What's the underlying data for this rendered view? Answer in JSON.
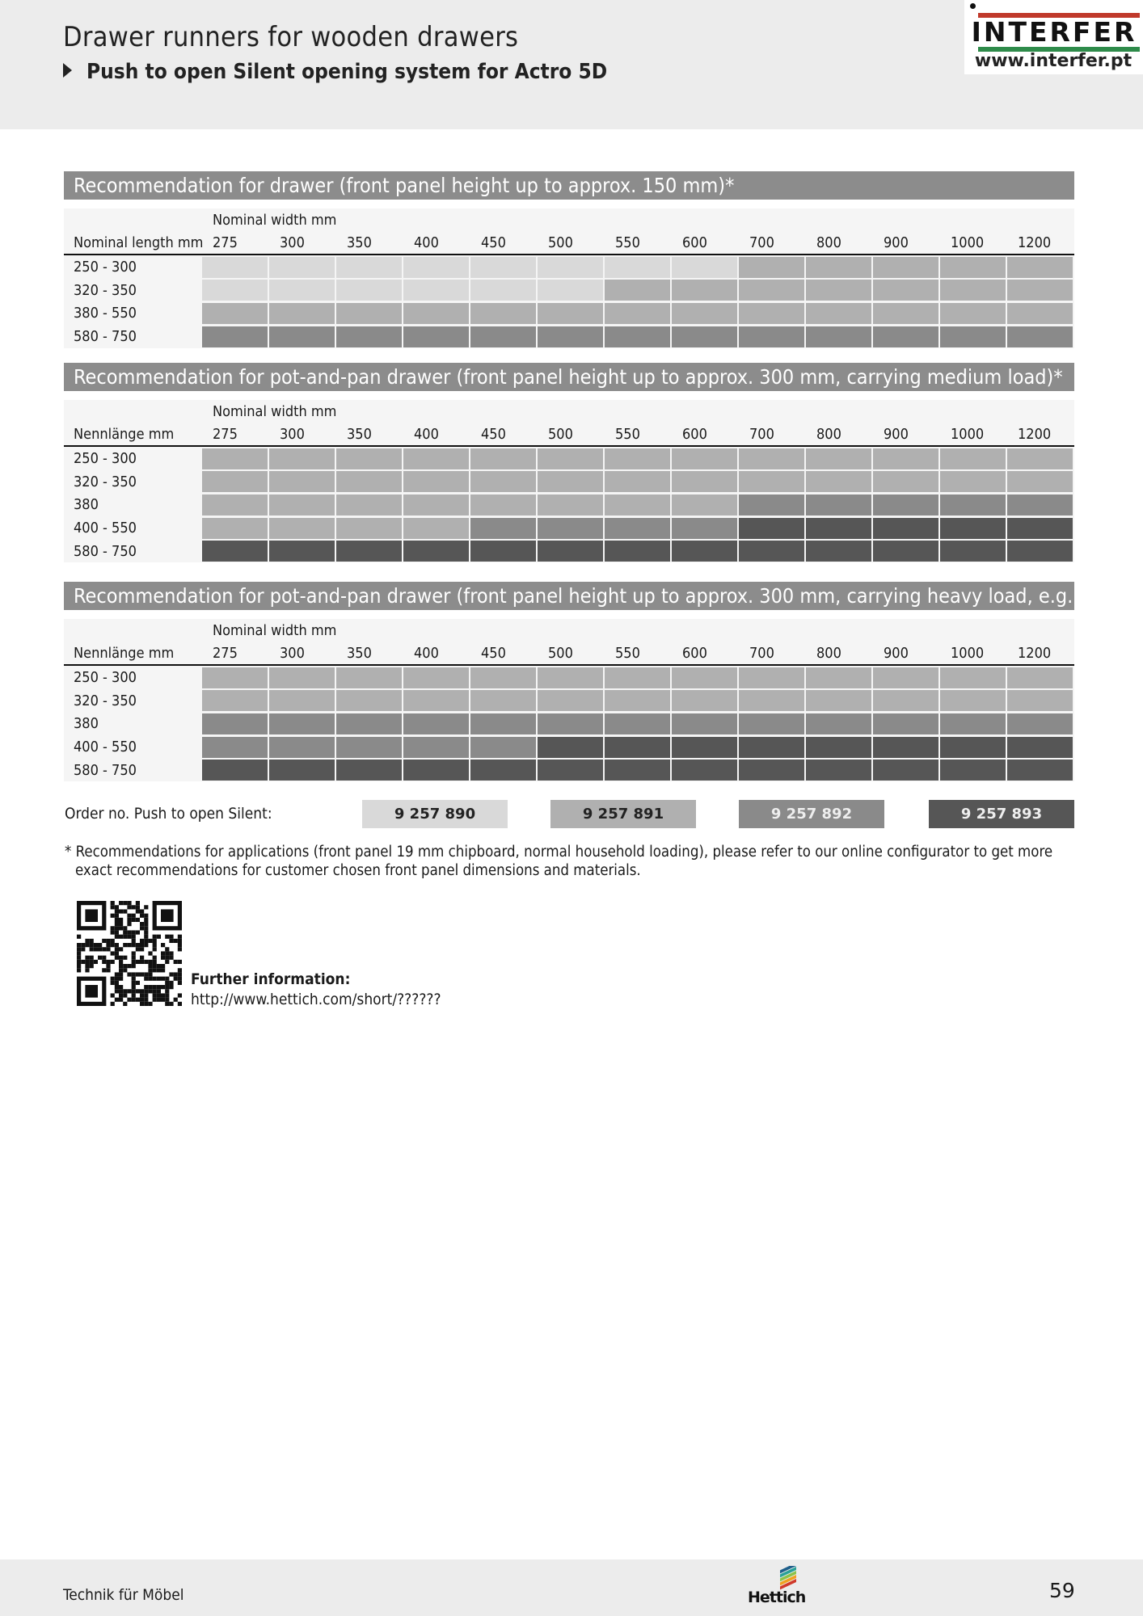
{
  "header": {
    "title": "Drawer runners for wooden drawers",
    "subtitle": "Push to open Silent opening system for Actro 5D"
  },
  "logo": {
    "brand": "INTERFER",
    "url": "www.interfer.pt"
  },
  "colors": {
    "levels": [
      "#d9d9d9",
      "#b0b0b0",
      "#8a8a8a",
      "#565656"
    ],
    "title_bar": "#8c8c8c"
  },
  "columns": [
    "275",
    "300",
    "350",
    "400",
    "450",
    "500",
    "550",
    "600",
    "700",
    "800",
    "900",
    "1000",
    "1200"
  ],
  "tables": [
    {
      "title": "Recommendation for drawer (front panel height up to approx. 150 mm)*",
      "width_label": "Nominal width mm",
      "length_label": "Nominal length mm",
      "rows": [
        {
          "label": "250 - 300",
          "levels": [
            0,
            0,
            0,
            0,
            0,
            0,
            0,
            0,
            1,
            1,
            1,
            1,
            1
          ]
        },
        {
          "label": "320 - 350",
          "levels": [
            0,
            0,
            0,
            0,
            0,
            0,
            1,
            1,
            1,
            1,
            1,
            1,
            1
          ]
        },
        {
          "label": "380 - 550",
          "levels": [
            1,
            1,
            1,
            1,
            1,
            1,
            1,
            1,
            1,
            1,
            1,
            1,
            1
          ]
        },
        {
          "label": "580 - 750",
          "levels": [
            2,
            2,
            2,
            2,
            2,
            2,
            2,
            2,
            2,
            2,
            2,
            2,
            2
          ]
        }
      ]
    },
    {
      "title": "Recommendation for pot-and-pan drawer (front panel height up to approx. 300 mm, carrying medium load)*",
      "width_label": "Nominal width mm",
      "length_label": "Nennlänge mm",
      "rows": [
        {
          "label": "250 - 300",
          "levels": [
            1,
            1,
            1,
            1,
            1,
            1,
            1,
            1,
            1,
            1,
            1,
            1,
            1
          ]
        },
        {
          "label": "320 - 350",
          "levels": [
            1,
            1,
            1,
            1,
            1,
            1,
            1,
            1,
            1,
            1,
            1,
            1,
            1
          ]
        },
        {
          "label": "380",
          "levels": [
            1,
            1,
            1,
            1,
            1,
            1,
            1,
            1,
            2,
            2,
            2,
            2,
            2
          ]
        },
        {
          "label": "400 - 550",
          "levels": [
            1,
            1,
            1,
            1,
            2,
            2,
            2,
            2,
            3,
            3,
            3,
            3,
            3
          ]
        },
        {
          "label": "580 - 750",
          "levels": [
            3,
            3,
            3,
            3,
            3,
            3,
            3,
            3,
            3,
            3,
            3,
            3,
            3
          ]
        }
      ]
    },
    {
      "title": "Recommendation for pot-and-pan drawer (front panel height up to approx. 300 mm, carrying heavy load, e.g. with stacks of plates)*",
      "width_label": "Nominal width mm",
      "length_label": "Nennlänge mm",
      "rows": [
        {
          "label": "250 - 300",
          "levels": [
            1,
            1,
            1,
            1,
            1,
            1,
            1,
            1,
            1,
            1,
            1,
            1,
            1
          ]
        },
        {
          "label": "320 - 350",
          "levels": [
            1,
            1,
            1,
            1,
            1,
            1,
            1,
            1,
            1,
            1,
            1,
            1,
            1
          ]
        },
        {
          "label": "380",
          "levels": [
            2,
            2,
            2,
            2,
            2,
            2,
            2,
            2,
            2,
            2,
            2,
            2,
            2
          ]
        },
        {
          "label": "400 - 550",
          "levels": [
            2,
            2,
            2,
            2,
            2,
            3,
            3,
            3,
            3,
            3,
            3,
            3,
            3
          ]
        },
        {
          "label": "580 - 750",
          "levels": [
            3,
            3,
            3,
            3,
            3,
            3,
            3,
            3,
            3,
            3,
            3,
            3,
            3
          ]
        }
      ]
    }
  ],
  "order": {
    "label": "Order no. Push to open Silent:",
    "numbers": [
      "9 257 890",
      "9 257 891",
      "9 257 892",
      "9 257 893"
    ]
  },
  "footnote": "* Recommendations for applications (front panel 19 mm chipboard, normal household loading), please refer to our online configurator to get more exact recommendations for customer chosen front panel dimensions and materials.",
  "further": {
    "label": "Further information:",
    "url": "http://www.hettich.com/short/??????"
  },
  "footer": {
    "tagline": "Technik für Möbel",
    "brand": "Hettich",
    "page": "59"
  }
}
